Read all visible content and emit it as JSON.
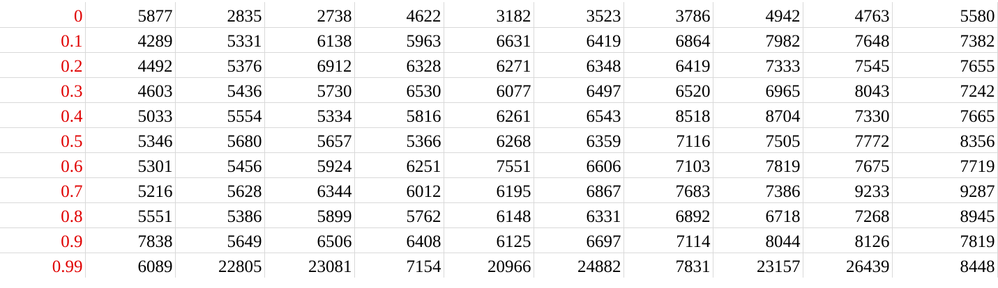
{
  "sheet": {
    "label_color": "#e00000",
    "value_color": "#000000",
    "gridline_color": "#d9d9d9",
    "rows": [
      {
        "label": "0",
        "values": [
          "5877",
          "2835",
          "2738",
          "4622",
          "3182",
          "3523",
          "3786",
          "4942",
          "4763",
          "5580"
        ]
      },
      {
        "label": "0.1",
        "values": [
          "4289",
          "5331",
          "6138",
          "5963",
          "6631",
          "6419",
          "6864",
          "7982",
          "7648",
          "7382"
        ]
      },
      {
        "label": "0.2",
        "values": [
          "4492",
          "5376",
          "6912",
          "6328",
          "6271",
          "6348",
          "6419",
          "7333",
          "7545",
          "7655"
        ]
      },
      {
        "label": "0.3",
        "values": [
          "4603",
          "5436",
          "5730",
          "6530",
          "6077",
          "6497",
          "6520",
          "6965",
          "8043",
          "7242"
        ]
      },
      {
        "label": "0.4",
        "values": [
          "5033",
          "5554",
          "5334",
          "5816",
          "6261",
          "6543",
          "8518",
          "8704",
          "7330",
          "7665"
        ]
      },
      {
        "label": "0.5",
        "values": [
          "5346",
          "5680",
          "5657",
          "5366",
          "6268",
          "6359",
          "7116",
          "7505",
          "7772",
          "8356"
        ]
      },
      {
        "label": "0.6",
        "values": [
          "5301",
          "5456",
          "5924",
          "6251",
          "7551",
          "6606",
          "7103",
          "7819",
          "7675",
          "7719"
        ]
      },
      {
        "label": "0.7",
        "values": [
          "5216",
          "5628",
          "6344",
          "6012",
          "6195",
          "6867",
          "7683",
          "7386",
          "9233",
          "9287"
        ]
      },
      {
        "label": "0.8",
        "values": [
          "5551",
          "5386",
          "5899",
          "5762",
          "6148",
          "6331",
          "6892",
          "6718",
          "7268",
          "8945"
        ]
      },
      {
        "label": "0.9",
        "values": [
          "7838",
          "5649",
          "6506",
          "6408",
          "6125",
          "6697",
          "7114",
          "8044",
          "8126",
          "7819"
        ]
      },
      {
        "label": "0.99",
        "values": [
          "6089",
          "22805",
          "23081",
          "7154",
          "20966",
          "24882",
          "7831",
          "23157",
          "26439",
          "8448"
        ]
      }
    ]
  }
}
